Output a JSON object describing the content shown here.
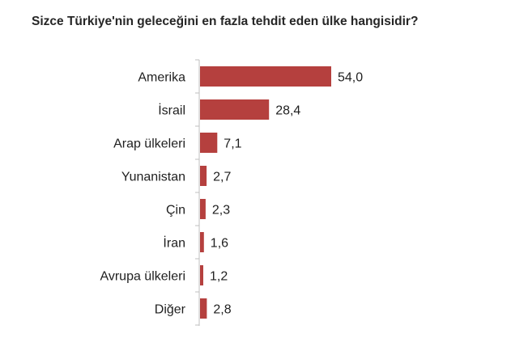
{
  "chart_data": {
    "type": "bar",
    "orientation": "horizontal",
    "title": "Sizce Türkiye'nin geleceğini en fazla tehdit eden ülke hangisidir?",
    "categories": [
      "Amerika",
      "İsrail",
      "Arap ülkeleri",
      "Yunanistan",
      "Çin",
      "İran",
      "Avrupa ülkeleri",
      "Diğer"
    ],
    "values": [
      54.0,
      28.4,
      7.1,
      2.7,
      2.3,
      1.6,
      1.2,
      2.8
    ],
    "value_labels": [
      "54,0",
      "28,4",
      "7,1",
      "2,7",
      "2,3",
      "1,6",
      "1,2",
      "2,8"
    ],
    "xlabel": "",
    "ylabel": "",
    "xlim": [
      0,
      54
    ],
    "grid": false,
    "legend": "none",
    "bar_color": "#b5403e"
  }
}
